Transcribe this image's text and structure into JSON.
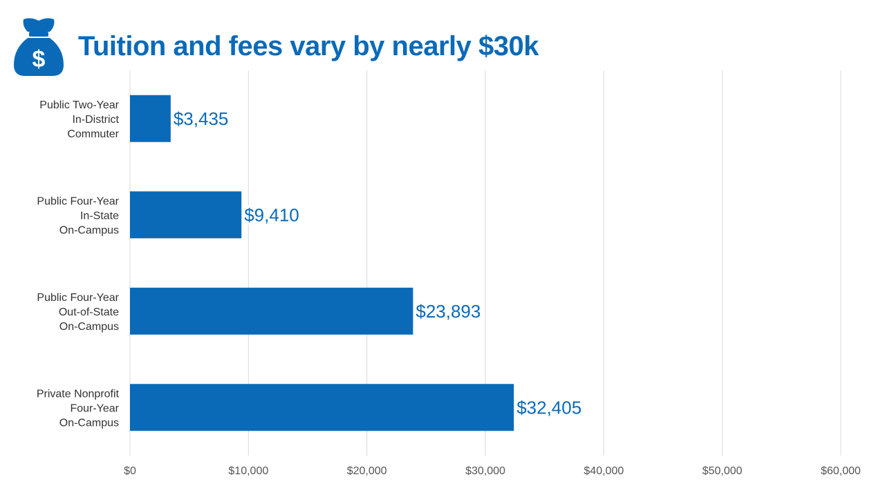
{
  "title": "Tuition and fees vary by nearly $30k",
  "icon": "money-bag-icon",
  "colors": {
    "accent": "#0a6ab8",
    "bar": "#0a6ab8",
    "grid": "#d9d9d9",
    "axis_text": "#555555"
  },
  "chart_data": {
    "type": "bar",
    "orientation": "horizontal",
    "title": "Tuition and fees vary by nearly $30k",
    "categories": [
      [
        "Public Two-Year",
        "In-District",
        "Commuter"
      ],
      [
        "Public Four-Year",
        "In-State",
        "On-Campus"
      ],
      [
        "Public Four-Year",
        "Out-of-State",
        "On-Campus"
      ],
      [
        "Private Nonprofit",
        "Four-Year",
        "On-Campus"
      ]
    ],
    "values": [
      3435,
      9410,
      23893,
      32405
    ],
    "data_labels": [
      "$3,435",
      "$9,410",
      "$23,893",
      "$32,405"
    ],
    "xlim": [
      0,
      60000
    ],
    "x_ticks": [
      0,
      10000,
      20000,
      30000,
      40000,
      50000,
      60000
    ],
    "x_tick_labels": [
      "$0",
      "$10,000",
      "$20,000",
      "$30,000",
      "$40,000",
      "$50,000",
      "$60,000"
    ],
    "xlabel": "",
    "ylabel": "",
    "grid": true,
    "legend": "none"
  }
}
